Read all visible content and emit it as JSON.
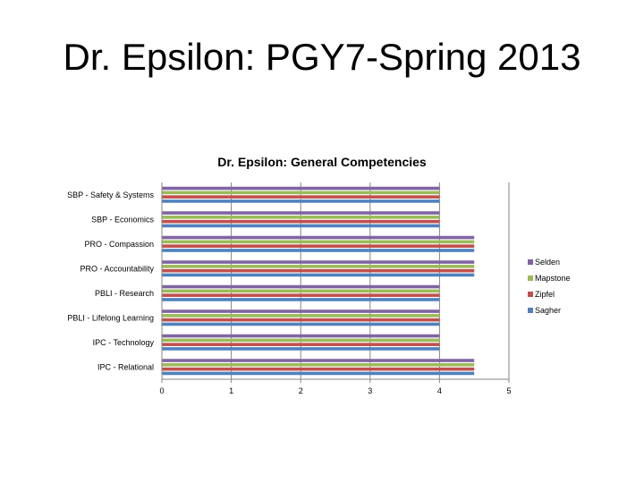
{
  "slide": {
    "title": "Dr. Epsilon: PGY7-Spring 2013"
  },
  "chart_data": {
    "type": "bar",
    "orientation": "horizontal",
    "title": "Dr. Epsilon: General Competencies",
    "xlabel": "",
    "ylabel": "",
    "xlim": [
      0,
      5
    ],
    "x_ticks": [
      0,
      1,
      2,
      3,
      4,
      5
    ],
    "grid": true,
    "legend_position": "right",
    "categories": [
      "SBP - Safety & Systems",
      "SBP - Economics",
      "PRO - Compassion",
      "PRO - Accountability",
      "PBLI - Research",
      "PBLI - Lifelong Learning",
      "IPC - Technology",
      "IPC - Relational"
    ],
    "series": [
      {
        "name": "Selden",
        "color": "#8064a2",
        "values": [
          4,
          4,
          4.5,
          4.5,
          4,
          4,
          4,
          4.5
        ]
      },
      {
        "name": "Mapstone",
        "color": "#9bbb59",
        "values": [
          4,
          4,
          4.5,
          4.5,
          4,
          4,
          4,
          4.5
        ]
      },
      {
        "name": "Zipfel",
        "color": "#c0504d",
        "values": [
          4,
          4,
          4.5,
          4.5,
          4,
          4,
          4,
          4.5
        ]
      },
      {
        "name": "Sagher",
        "color": "#4f81bd",
        "values": [
          4,
          4,
          4.5,
          4.5,
          4,
          4,
          4,
          4.5
        ]
      }
    ]
  }
}
